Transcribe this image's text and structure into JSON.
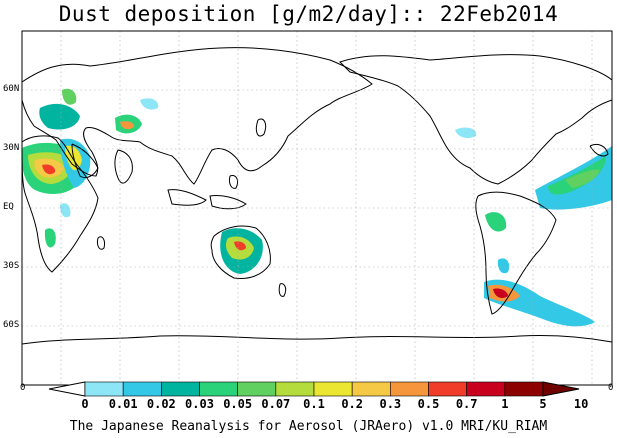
{
  "title": "Dust deposition [g/m2/day]:: 22Feb2014",
  "credit": "The Japanese Reanalysis for Aerosol (JRAero) v1.0 MRI/KU_RIAM",
  "latitude_labels": [
    "60N",
    "30N",
    "EQ",
    "30S",
    "60S"
  ],
  "colorbar": {
    "left_end_label": "0",
    "right_end_label": "0",
    "labels": [
      "0",
      "0.01",
      "0.02",
      "0.03",
      "0.05",
      "0.07",
      "0.1",
      "0.2",
      "0.3",
      "0.5",
      "0.7",
      "1",
      "5",
      "10"
    ],
    "colors": [
      "#ffffff",
      "#8ce6f5",
      "#32c8e6",
      "#00b4a0",
      "#2ad27a",
      "#60d060",
      "#b4dc3c",
      "#ebe632",
      "#f5c846",
      "#f5963c",
      "#f03c28",
      "#c8001e",
      "#8c0000",
      "#6e0000"
    ]
  }
}
